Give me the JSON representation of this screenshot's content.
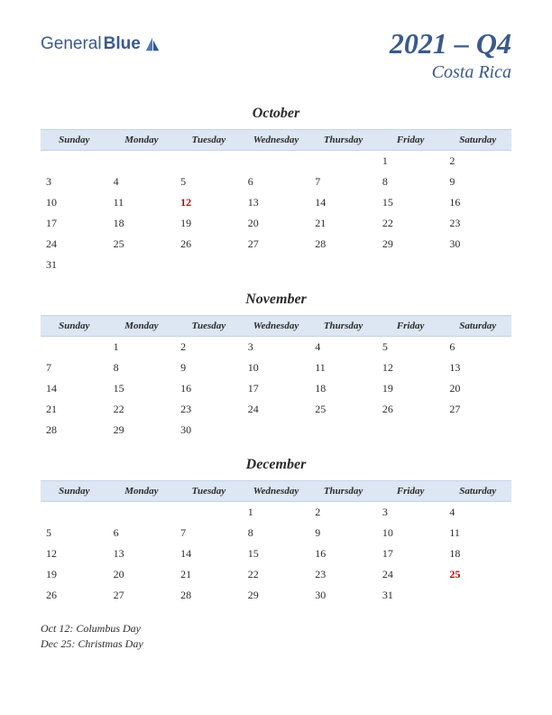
{
  "logo": {
    "general": "General",
    "blue": "Blue"
  },
  "title": "2021 – Q4",
  "subtitle": "Costa Rica",
  "colors": {
    "header_bg": "#dde6f3",
    "header_border": "#c5d4e8",
    "text": "#2a2a2a",
    "accent": "#3a5a8a",
    "holiday": "#c00000"
  },
  "day_headers": [
    "Sunday",
    "Monday",
    "Tuesday",
    "Wednesday",
    "Thursday",
    "Friday",
    "Saturday"
  ],
  "months": [
    {
      "name": "October",
      "weeks": [
        [
          "",
          "",
          "",
          "",
          "",
          "1",
          "2"
        ],
        [
          "3",
          "4",
          "5",
          "6",
          "7",
          "8",
          "9"
        ],
        [
          "10",
          "11",
          "12",
          "13",
          "14",
          "15",
          "16"
        ],
        [
          "17",
          "18",
          "19",
          "20",
          "21",
          "22",
          "23"
        ],
        [
          "24",
          "25",
          "26",
          "27",
          "28",
          "29",
          "30"
        ],
        [
          "31",
          "",
          "",
          "",
          "",
          "",
          ""
        ]
      ],
      "holidays": [
        {
          "week": 2,
          "day": 2
        }
      ]
    },
    {
      "name": "November",
      "weeks": [
        [
          "",
          "1",
          "2",
          "3",
          "4",
          "5",
          "6"
        ],
        [
          "7",
          "8",
          "9",
          "10",
          "11",
          "12",
          "13"
        ],
        [
          "14",
          "15",
          "16",
          "17",
          "18",
          "19",
          "20"
        ],
        [
          "21",
          "22",
          "23",
          "24",
          "25",
          "26",
          "27"
        ],
        [
          "28",
          "29",
          "30",
          "",
          "",
          "",
          ""
        ]
      ],
      "holidays": []
    },
    {
      "name": "December",
      "weeks": [
        [
          "",
          "",
          "",
          "1",
          "2",
          "3",
          "4"
        ],
        [
          "5",
          "6",
          "7",
          "8",
          "9",
          "10",
          "11"
        ],
        [
          "12",
          "13",
          "14",
          "15",
          "16",
          "17",
          "18"
        ],
        [
          "19",
          "20",
          "21",
          "22",
          "23",
          "24",
          "25"
        ],
        [
          "26",
          "27",
          "28",
          "29",
          "30",
          "31",
          ""
        ]
      ],
      "holidays": [
        {
          "week": 3,
          "day": 6
        }
      ]
    }
  ],
  "holiday_list": [
    "Oct 12: Columbus Day",
    "Dec 25: Christmas Day"
  ]
}
